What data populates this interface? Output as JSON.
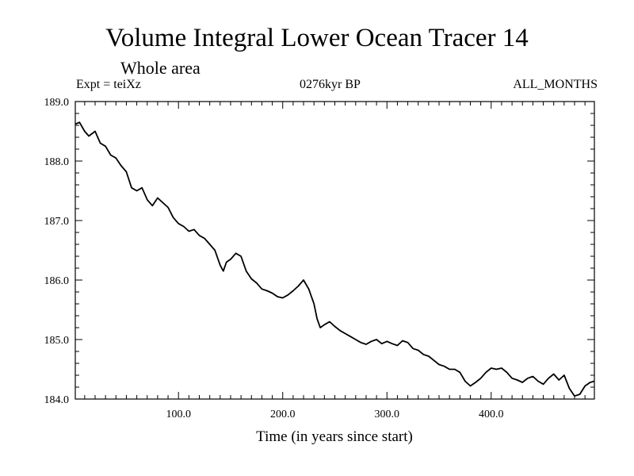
{
  "header": {
    "title": "Volume Integral Lower Ocean Tracer 14",
    "subtitle": "Whole area",
    "expt": "Expt = teiXz",
    "period": "0276kyr BP",
    "months": "ALL_MONTHS"
  },
  "chart_data": {
    "type": "line",
    "title": "Volume Integral Lower Ocean Tracer 14",
    "subtitle": "Whole area",
    "xlabel": "Time (in years since start)",
    "ylabel": "",
    "xlim": [
      1,
      499
    ],
    "ylim": [
      184.0,
      189.0
    ],
    "x_ticks": [
      100,
      200,
      300,
      400
    ],
    "x_tick_labels": [
      "100.0",
      "200.0",
      "300.0",
      "400.0"
    ],
    "y_ticks": [
      184,
      185,
      186,
      187,
      188,
      189
    ],
    "y_tick_labels": [
      "184.0",
      "185.0",
      "186.0",
      "187.0",
      "188.0",
      "189.0"
    ],
    "grid": false,
    "series": [
      {
        "color": "#000000",
        "x": [
          1,
          5,
          10,
          14,
          20,
          25,
          30,
          35,
          40,
          45,
          50,
          55,
          60,
          65,
          70,
          75,
          80,
          85,
          90,
          95,
          100,
          105,
          110,
          115,
          120,
          125,
          130,
          135,
          140,
          143,
          146,
          150,
          155,
          160,
          165,
          170,
          175,
          180,
          185,
          190,
          195,
          200,
          205,
          210,
          215,
          220,
          225,
          230,
          233,
          236,
          240,
          245,
          250,
          255,
          260,
          265,
          270,
          275,
          280,
          285,
          290,
          295,
          300,
          305,
          310,
          315,
          320,
          325,
          330,
          335,
          340,
          345,
          350,
          355,
          360,
          365,
          370,
          375,
          380,
          385,
          390,
          395,
          400,
          405,
          410,
          415,
          420,
          425,
          430,
          435,
          440,
          445,
          450,
          455,
          460,
          465,
          470,
          475,
          480,
          485,
          490,
          495,
          499
        ],
        "y": [
          188.62,
          188.65,
          188.5,
          188.42,
          188.5,
          188.3,
          188.25,
          188.1,
          188.05,
          187.92,
          187.82,
          187.55,
          187.5,
          187.55,
          187.35,
          187.25,
          187.38,
          187.3,
          187.22,
          187.05,
          186.95,
          186.9,
          186.82,
          186.85,
          186.75,
          186.7,
          186.6,
          186.5,
          186.25,
          186.15,
          186.3,
          186.35,
          186.45,
          186.4,
          186.15,
          186.02,
          185.95,
          185.85,
          185.82,
          185.78,
          185.72,
          185.7,
          185.75,
          185.82,
          185.9,
          186.0,
          185.85,
          185.6,
          185.35,
          185.2,
          185.25,
          185.3,
          185.22,
          185.15,
          185.1,
          185.05,
          185.0,
          184.95,
          184.92,
          184.97,
          185.0,
          184.93,
          184.97,
          184.93,
          184.9,
          184.98,
          184.95,
          184.85,
          184.82,
          184.75,
          184.72,
          184.65,
          184.58,
          184.55,
          184.5,
          184.5,
          184.45,
          184.3,
          184.22,
          184.28,
          184.35,
          184.45,
          184.52,
          184.5,
          184.52,
          184.45,
          184.35,
          184.32,
          184.28,
          184.35,
          184.38,
          184.3,
          184.25,
          184.35,
          184.42,
          184.32,
          184.4,
          184.18,
          184.05,
          184.08,
          184.22,
          184.28,
          184.3
        ]
      }
    ]
  }
}
